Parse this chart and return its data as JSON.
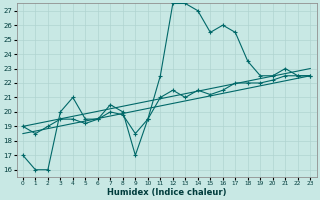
{
  "title": "",
  "xlabel": "Humidex (Indice chaleur)",
  "xlim": [
    -0.5,
    23.5
  ],
  "ylim": [
    15.5,
    27.5
  ],
  "yticks": [
    16,
    17,
    18,
    19,
    20,
    21,
    22,
    23,
    24,
    25,
    26,
    27
  ],
  "xticks": [
    0,
    1,
    2,
    3,
    4,
    5,
    6,
    7,
    8,
    9,
    10,
    11,
    12,
    13,
    14,
    15,
    16,
    17,
    18,
    19,
    20,
    21,
    22,
    23
  ],
  "bg_color": "#c8e8e4",
  "grid_color": "#b0d4d0",
  "line_color": "#006868",
  "line1_x": [
    0,
    1,
    2,
    3,
    4,
    5,
    6,
    7,
    8,
    9,
    10,
    11,
    12,
    13,
    14,
    15,
    16,
    17,
    18,
    19,
    20,
    21,
    22,
    23
  ],
  "line1_y": [
    17.0,
    16.0,
    16.0,
    20.0,
    21.0,
    19.5,
    19.5,
    20.5,
    20.0,
    17.0,
    19.5,
    22.5,
    27.5,
    27.5,
    27.0,
    25.5,
    26.0,
    25.5,
    23.5,
    22.5,
    22.5,
    23.0,
    22.5,
    22.5
  ],
  "line2_x": [
    0,
    1,
    2,
    3,
    4,
    5,
    6,
    7,
    8,
    9,
    10,
    11,
    12,
    13,
    14,
    15,
    16,
    17,
    18,
    19,
    20,
    21,
    22,
    23
  ],
  "line2_y": [
    19.0,
    18.5,
    19.0,
    19.5,
    19.5,
    19.2,
    19.5,
    20.0,
    19.8,
    18.5,
    19.5,
    21.0,
    21.5,
    21.0,
    21.5,
    21.2,
    21.5,
    22.0,
    22.0,
    22.0,
    22.2,
    22.5,
    22.5,
    22.5
  ],
  "line3_x": [
    0,
    23
  ],
  "line3_y": [
    19.0,
    23.0
  ],
  "line4_x": [
    0,
    23
  ],
  "line4_y": [
    18.5,
    22.5
  ]
}
